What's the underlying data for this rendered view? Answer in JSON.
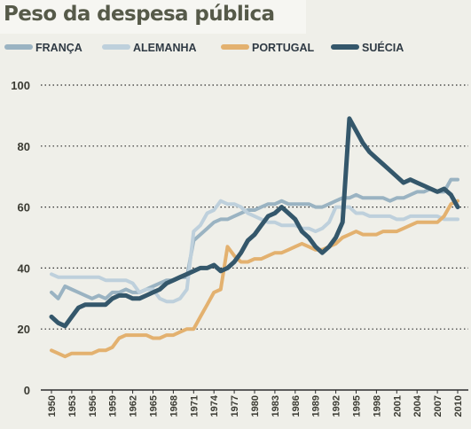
{
  "title": "Peso da despesa pública",
  "colors": {
    "background": "#efefe9",
    "grid": "#2d2d2d",
    "text": "#3b3b33"
  },
  "chart_data": {
    "type": "line",
    "title": "Peso da despesa pública",
    "xlabel": "",
    "ylabel": "",
    "ylim": [
      0,
      100
    ],
    "yticks": [
      0,
      20,
      40,
      60,
      80,
      100
    ],
    "grid": "horizontal dotted",
    "legend_position": "top",
    "x_tick_labels": [
      "1950",
      "1953",
      "1956",
      "1959",
      "1962",
      "1965",
      "1968",
      "1971",
      "1974",
      "1977",
      "1980",
      "1983",
      "1986",
      "1989",
      "1992",
      "1995",
      "1998",
      "2001",
      "2004",
      "2007",
      "2010"
    ],
    "x": [
      1950,
      1951,
      1952,
      1953,
      1954,
      1955,
      1956,
      1957,
      1958,
      1959,
      1960,
      1961,
      1962,
      1963,
      1964,
      1965,
      1966,
      1967,
      1968,
      1969,
      1970,
      1971,
      1972,
      1973,
      1974,
      1975,
      1976,
      1977,
      1978,
      1979,
      1980,
      1981,
      1982,
      1983,
      1984,
      1985,
      1986,
      1987,
      1988,
      1989,
      1990,
      1991,
      1992,
      1993,
      1994,
      1995,
      1996,
      1997,
      1998,
      1999,
      2000,
      2001,
      2002,
      2003,
      2004,
      2005,
      2006,
      2007,
      2008,
      2009,
      2010
    ],
    "series": [
      {
        "name": "FRANÇA",
        "color": "#9ab3c2",
        "values": [
          32,
          30,
          34,
          33,
          32,
          31,
          30,
          31,
          30,
          32,
          32,
          33,
          32,
          32,
          33,
          34,
          35,
          36,
          36,
          37,
          37,
          49,
          51,
          53,
          55,
          56,
          56,
          57,
          58,
          59,
          59,
          60,
          61,
          61,
          62,
          61,
          61,
          61,
          61,
          60,
          60,
          61,
          62,
          63,
          63,
          64,
          63,
          63,
          63,
          63,
          62,
          63,
          63,
          64,
          65,
          65,
          66,
          65,
          65,
          69,
          69
        ]
      },
      {
        "name": "ALEMANHA",
        "color": "#bed0dc",
        "values": [
          38,
          37,
          37,
          37,
          37,
          37,
          37,
          37,
          36,
          36,
          36,
          36,
          35,
          32,
          33,
          33,
          30,
          29,
          29,
          30,
          33,
          52,
          54,
          58,
          59,
          62,
          61,
          61,
          60,
          58,
          57,
          56,
          55,
          55,
          54,
          54,
          54,
          53,
          53,
          52,
          53,
          55,
          60,
          60,
          60,
          58,
          58,
          57,
          57,
          57,
          57,
          56,
          56,
          57,
          57,
          57,
          57,
          57,
          56,
          56,
          56
        ]
      },
      {
        "name": "PORTUGAL",
        "color": "#e3b16f",
        "values": [
          13,
          12,
          11,
          12,
          12,
          12,
          12,
          13,
          13,
          14,
          17,
          18,
          18,
          18,
          18,
          17,
          17,
          18,
          18,
          19,
          20,
          20,
          24,
          28,
          32,
          33,
          47,
          44,
          42,
          42,
          43,
          43,
          44,
          45,
          45,
          46,
          47,
          48,
          47,
          46,
          46,
          47,
          48,
          50,
          51,
          52,
          51,
          51,
          51,
          52,
          52,
          52,
          53,
          54,
          55,
          55,
          55,
          55,
          57,
          61,
          62
        ]
      },
      {
        "name": "SUÉCIA",
        "color": "#34576b",
        "values": [
          24,
          22,
          21,
          24,
          27,
          28,
          28,
          28,
          28,
          30,
          31,
          31,
          30,
          30,
          31,
          32,
          33,
          35,
          36,
          37,
          38,
          39,
          40,
          40,
          41,
          39,
          40,
          42,
          45,
          49,
          51,
          54,
          57,
          58,
          60,
          58,
          56,
          52,
          50,
          47,
          45,
          47,
          50,
          55,
          89,
          85,
          81,
          78,
          76,
          74,
          72,
          70,
          68,
          69,
          68,
          67,
          66,
          65,
          66,
          64,
          60
        ]
      }
    ]
  }
}
